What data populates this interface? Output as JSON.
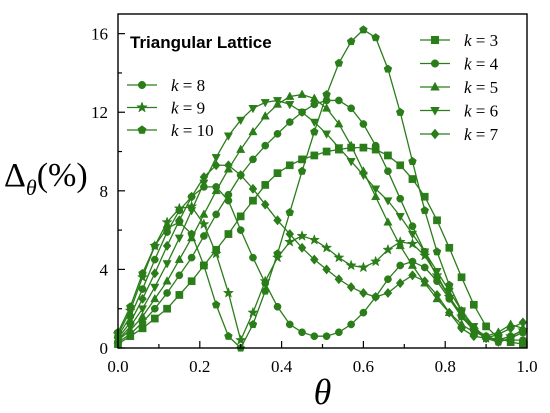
{
  "chart_data": {
    "type": "line",
    "title": "Triangular Lattice",
    "xlabel": "θ",
    "ylabel": {
      "symbol": "Δ",
      "subscript": "θ",
      "unit": "(%)"
    },
    "xlim": [
      0.0,
      1.0
    ],
    "ylim": [
      0,
      17
    ],
    "xticks": [
      0.0,
      0.2,
      0.4,
      0.6,
      0.8,
      1.0
    ],
    "xtick_labels": [
      "0.0",
      "0.2",
      "0.4",
      "0.6",
      "0.8",
      "1.0"
    ],
    "yticks": [
      0,
      4,
      8,
      12,
      16
    ],
    "ytick_labels": [
      "0",
      "4",
      "8",
      "12",
      "16"
    ],
    "grid": false,
    "color": "#2a7d19",
    "legend": [
      {
        "position": "top-left",
        "entries": [
          {
            "k": "8",
            "marker": "circle"
          },
          {
            "k": "9",
            "marker": "star"
          },
          {
            "k": "10",
            "marker": "pentagon"
          }
        ]
      },
      {
        "position": "top-right",
        "entries": [
          {
            "k": "3",
            "marker": "square"
          },
          {
            "k": "4",
            "marker": "circle"
          },
          {
            "k": "5",
            "marker": "triangle-up"
          },
          {
            "k": "6",
            "marker": "triangle-down"
          },
          {
            "k": "7",
            "marker": "diamond"
          }
        ]
      }
    ],
    "series": [
      {
        "name": "k = 3",
        "marker": "square",
        "x": [
          0.0,
          0.03,
          0.06,
          0.09,
          0.12,
          0.15,
          0.18,
          0.21,
          0.24,
          0.27,
          0.3,
          0.33,
          0.36,
          0.39,
          0.42,
          0.45,
          0.48,
          0.51,
          0.54,
          0.57,
          0.6,
          0.63,
          0.66,
          0.69,
          0.72,
          0.75,
          0.78,
          0.81,
          0.84,
          0.87,
          0.9,
          0.93,
          0.96,
          0.99
        ],
        "y": [
          0.2,
          0.6,
          1.0,
          1.5,
          2.0,
          2.7,
          3.4,
          4.2,
          5.0,
          5.8,
          6.7,
          7.5,
          8.3,
          8.9,
          9.3,
          9.6,
          9.8,
          10.0,
          10.1,
          10.2,
          10.2,
          10.1,
          9.8,
          9.3,
          8.6,
          7.7,
          6.5,
          5.1,
          3.6,
          2.2,
          1.1,
          0.5,
          0.3,
          0.2
        ]
      },
      {
        "name": "k = 4",
        "marker": "circle",
        "x": [
          0.0,
          0.03,
          0.06,
          0.09,
          0.12,
          0.15,
          0.18,
          0.21,
          0.24,
          0.27,
          0.3,
          0.33,
          0.36,
          0.39,
          0.42,
          0.45,
          0.48,
          0.51,
          0.54,
          0.57,
          0.6,
          0.63,
          0.66,
          0.69,
          0.72,
          0.75,
          0.78,
          0.81,
          0.84,
          0.87,
          0.9,
          0.93,
          0.96,
          0.99
        ],
        "y": [
          0.3,
          0.7,
          1.3,
          2.0,
          2.8,
          3.7,
          4.6,
          5.7,
          6.8,
          7.8,
          8.8,
          9.6,
          10.3,
          10.9,
          11.5,
          12.0,
          12.4,
          12.6,
          12.6,
          12.2,
          11.4,
          10.3,
          9.0,
          7.6,
          6.2,
          4.9,
          3.6,
          2.6,
          1.7,
          1.0,
          0.6,
          0.4,
          0.4,
          0.4
        ]
      },
      {
        "name": "k = 5",
        "marker": "triangle-up",
        "x": [
          0.0,
          0.03,
          0.06,
          0.09,
          0.12,
          0.15,
          0.18,
          0.21,
          0.24,
          0.27,
          0.3,
          0.33,
          0.36,
          0.39,
          0.42,
          0.45,
          0.48,
          0.51,
          0.54,
          0.57,
          0.6,
          0.63,
          0.66,
          0.69,
          0.72,
          0.75,
          0.78,
          0.81,
          0.84,
          0.87,
          0.9,
          0.93,
          0.96,
          0.99
        ],
        "y": [
          0.4,
          0.9,
          1.6,
          2.5,
          3.4,
          4.5,
          5.6,
          6.8,
          8.0,
          9.1,
          10.1,
          11.0,
          11.8,
          12.4,
          12.8,
          12.9,
          12.7,
          12.2,
          11.4,
          10.3,
          9.0,
          7.7,
          6.4,
          5.2,
          4.2,
          3.3,
          2.5,
          1.8,
          1.2,
          0.8,
          0.6,
          0.8,
          1.2,
          1.0
        ]
      },
      {
        "name": "k = 6",
        "marker": "triangle-down",
        "x": [
          0.0,
          0.03,
          0.06,
          0.09,
          0.12,
          0.15,
          0.18,
          0.21,
          0.24,
          0.27,
          0.3,
          0.33,
          0.36,
          0.39,
          0.42,
          0.45,
          0.48,
          0.51,
          0.54,
          0.57,
          0.6,
          0.63,
          0.66,
          0.69,
          0.72,
          0.75,
          0.78,
          0.81,
          0.84,
          0.87,
          0.9,
          0.93,
          0.96,
          0.99
        ],
        "y": [
          0.4,
          1.1,
          2.0,
          3.1,
          4.3,
          5.6,
          7.0,
          8.4,
          9.7,
          10.8,
          11.6,
          12.2,
          12.5,
          12.6,
          12.4,
          12.0,
          11.5,
          10.9,
          10.2,
          9.5,
          8.8,
          8.1,
          7.5,
          6.7,
          5.8,
          4.9,
          3.9,
          2.9,
          1.9,
          1.1,
          0.5,
          0.3,
          0.5,
          0.8
        ]
      },
      {
        "name": "k = 7",
        "marker": "diamond",
        "x": [
          0.0,
          0.03,
          0.06,
          0.09,
          0.12,
          0.15,
          0.18,
          0.21,
          0.24,
          0.27,
          0.3,
          0.33,
          0.36,
          0.39,
          0.42,
          0.45,
          0.48,
          0.51,
          0.54,
          0.57,
          0.6,
          0.63,
          0.66,
          0.69,
          0.72,
          0.75,
          0.78,
          0.81,
          0.84,
          0.87,
          0.9,
          0.93,
          0.96,
          0.99
        ],
        "y": [
          0.5,
          1.3,
          2.5,
          3.8,
          5.2,
          6.5,
          7.7,
          8.7,
          9.3,
          9.3,
          8.8,
          8.1,
          7.3,
          6.5,
          5.8,
          5.1,
          4.5,
          4.0,
          3.5,
          3.1,
          2.8,
          2.6,
          2.8,
          3.3,
          3.7,
          3.4,
          2.7,
          1.8,
          1.0,
          0.6,
          0.5,
          0.7,
          1.0,
          1.3
        ]
      },
      {
        "name": "k = 8",
        "marker": "circle",
        "x": [
          0.0,
          0.03,
          0.06,
          0.09,
          0.12,
          0.15,
          0.18,
          0.21,
          0.24,
          0.27,
          0.3,
          0.33,
          0.36,
          0.39,
          0.42,
          0.45,
          0.48,
          0.51,
          0.54,
          0.57,
          0.6,
          0.63,
          0.66,
          0.69,
          0.72,
          0.75,
          0.78,
          0.81,
          0.84,
          0.87,
          0.9,
          0.93,
          0.96,
          0.99
        ],
        "y": [
          0.6,
          1.6,
          3.0,
          4.5,
          5.9,
          7.0,
          7.7,
          8.2,
          8.2,
          7.5,
          6.0,
          4.6,
          3.3,
          2.1,
          1.2,
          0.8,
          0.6,
          0.6,
          0.8,
          1.2,
          1.8,
          2.6,
          3.5,
          4.2,
          4.4,
          4.1,
          3.4,
          2.5,
          1.6,
          0.9,
          0.5,
          0.4,
          0.6,
          0.9
        ]
      },
      {
        "name": "k = 9",
        "marker": "star",
        "x": [
          0.0,
          0.03,
          0.06,
          0.09,
          0.12,
          0.15,
          0.18,
          0.21,
          0.24,
          0.27,
          0.3,
          0.33,
          0.36,
          0.39,
          0.42,
          0.45,
          0.48,
          0.51,
          0.54,
          0.57,
          0.6,
          0.63,
          0.66,
          0.69,
          0.72,
          0.75,
          0.78,
          0.81,
          0.84,
          0.87,
          0.9,
          0.93,
          0.96,
          0.99
        ],
        "y": [
          0.7,
          1.9,
          3.6,
          5.2,
          6.4,
          7.1,
          7.2,
          6.3,
          4.8,
          2.8,
          0.4,
          1.8,
          3.4,
          4.6,
          5.4,
          5.7,
          5.5,
          5.1,
          4.6,
          4.2,
          4.1,
          4.4,
          5.0,
          5.4,
          5.3,
          4.7,
          3.7,
          2.6,
          1.6,
          0.9,
          0.5,
          0.4,
          0.6,
          0.9
        ]
      },
      {
        "name": "k = 10",
        "marker": "pentagon",
        "x": [
          0.0,
          0.03,
          0.06,
          0.09,
          0.12,
          0.15,
          0.18,
          0.21,
          0.24,
          0.27,
          0.3,
          0.33,
          0.36,
          0.39,
          0.42,
          0.45,
          0.48,
          0.51,
          0.54,
          0.57,
          0.6,
          0.63,
          0.66,
          0.69,
          0.72,
          0.75,
          0.78,
          0.81,
          0.84,
          0.87,
          0.9,
          0.93,
          0.96,
          0.99
        ],
        "y": [
          0.8,
          2.1,
          3.8,
          5.2,
          6.1,
          6.4,
          5.8,
          4.2,
          2.2,
          0.6,
          0.0,
          1.2,
          2.9,
          4.8,
          6.9,
          9.0,
          11.0,
          12.9,
          14.5,
          15.6,
          16.2,
          15.8,
          14.2,
          12.0,
          9.5,
          7.0,
          4.9,
          3.2,
          1.9,
          1.0,
          0.5,
          0.3,
          0.5,
          0.8
        ]
      }
    ]
  }
}
